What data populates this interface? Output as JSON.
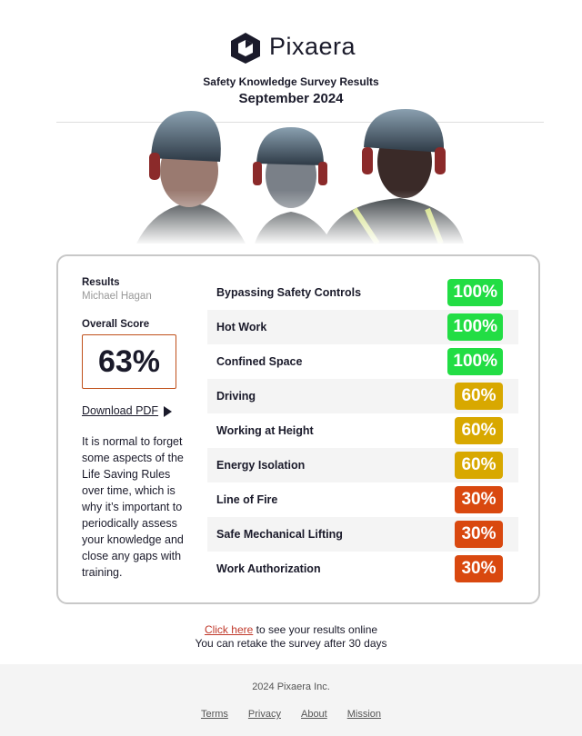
{
  "header": {
    "brand": "Pixaera",
    "title": "Safety Knowledge Survey Results",
    "date": "September 2024"
  },
  "results": {
    "label": "Results",
    "name": "Michael Hagan",
    "score_label": "Overall Score",
    "score": "63%",
    "download": "Download PDF",
    "note": "It is normal to forget some aspects of the Life Saving Rules over time, which is why it’s important to periodically assess your knowledge and close any gaps with training."
  },
  "topics": [
    {
      "name": "Bypassing Safety Controls",
      "score": "100%",
      "color": "#22dd44"
    },
    {
      "name": "Hot Work",
      "score": "100%",
      "color": "#22dd44"
    },
    {
      "name": "Confined Space",
      "score": "100%",
      "color": "#22dd44"
    },
    {
      "name": "Driving",
      "score": "60%",
      "color": "#d8a800"
    },
    {
      "name": "Working at Height",
      "score": "60%",
      "color": "#d8a800"
    },
    {
      "name": "Energy Isolation",
      "score": "60%",
      "color": "#d8a800"
    },
    {
      "name": "Line of Fire",
      "score": "30%",
      "color": "#d9480f"
    },
    {
      "name": "Safe Mechanical Lifting",
      "score": "30%",
      "color": "#d9480f"
    },
    {
      "name": "Work Authorization",
      "score": "30%",
      "color": "#d9480f"
    }
  ],
  "footer": {
    "link": "Click here",
    "link_text": "to see your results online",
    "retake": "You can retake the survey after 30 days",
    "copyright": "2024 Pixaera Inc.",
    "links": [
      "Terms",
      "Privacy",
      "About",
      "Mission"
    ]
  }
}
